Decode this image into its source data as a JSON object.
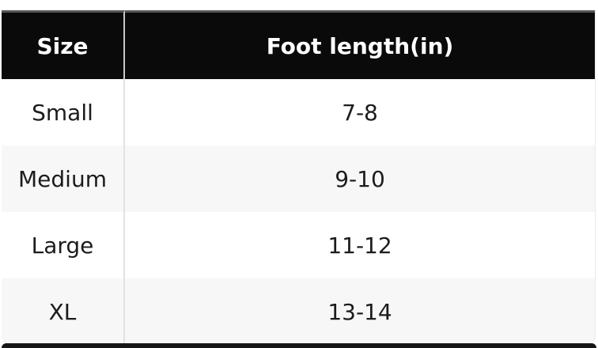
{
  "chart_data": {
    "type": "table",
    "columns": [
      "Size",
      "Foot length(in)"
    ],
    "rows": [
      [
        "Small",
        "7-8"
      ],
      [
        "Medium",
        "9-10"
      ],
      [
        "Large",
        "11-12"
      ],
      [
        "XL",
        "13-14"
      ]
    ],
    "layout_hints": {
      "header_style": "black background, white bold text",
      "row_striping": "odd white, even light gray",
      "alignment": "center"
    }
  },
  "colors": {
    "header_bg": "#0a0a0a",
    "header_text": "#ffffff",
    "header_top_border": "#565656",
    "row_bg": "#ffffff",
    "row_alt_bg": "#f7f7f8",
    "body_text": "#1c1c1c",
    "column_divider": "#dcdcdc",
    "bottom_bar": "#161616"
  }
}
